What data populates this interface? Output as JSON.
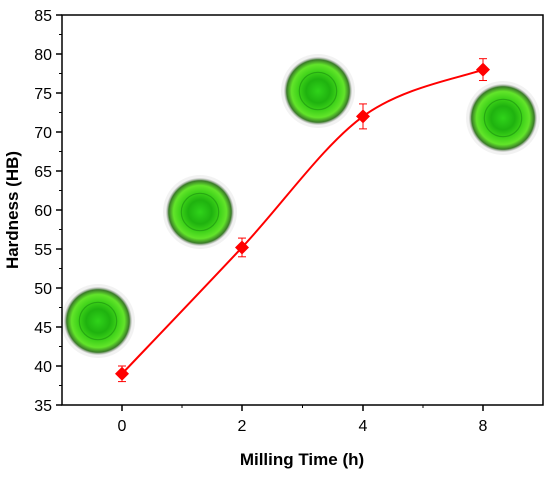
{
  "chart_data": {
    "type": "line",
    "title": "",
    "xlabel": "Milling Time (h)",
    "ylabel": "Hardness (HB)",
    "categories": [
      "0",
      "2",
      "4",
      "8"
    ],
    "x_tick_labels": [
      "0",
      "2",
      "4",
      "8"
    ],
    "y_ticks": [
      35,
      40,
      45,
      50,
      55,
      60,
      65,
      70,
      75,
      80,
      85
    ],
    "ylim": [
      35,
      85
    ],
    "series": [
      {
        "values": [
          39,
          55.2,
          72,
          78
        ],
        "errors": [
          1.0,
          1.2,
          1.6,
          1.4
        ],
        "color": "#ff0000",
        "marker": "diamond"
      }
    ],
    "inset_images": [
      {
        "category": "0",
        "depicts": "green indentation micrograph"
      },
      {
        "category": "2",
        "depicts": "green indentation micrograph"
      },
      {
        "category": "4",
        "depicts": "green indentation micrograph"
      },
      {
        "category": "8",
        "depicts": "green indentation micrograph"
      }
    ],
    "grid": false,
    "legend": "none",
    "colors": {
      "series": "#ff0000",
      "axis": "#000000",
      "inset": "#3ddc1e"
    }
  }
}
